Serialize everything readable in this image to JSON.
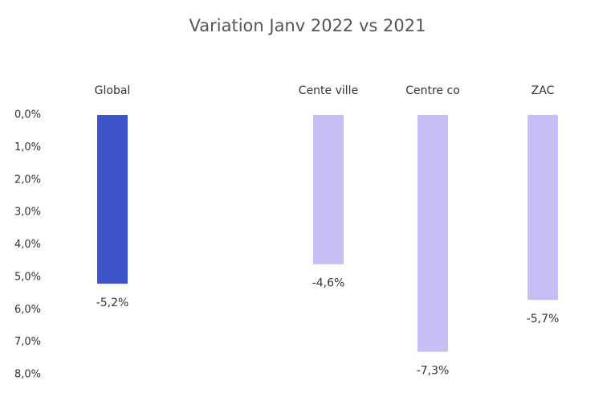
{
  "chart_data": {
    "type": "bar",
    "title": "Variation Janv 2022 vs 2021",
    "categories": [
      "Global",
      "Cente ville",
      "Centre co",
      "ZAC"
    ],
    "values": [
      -5.2,
      -4.6,
      -7.3,
      -5.7
    ],
    "value_labels": [
      "-5,2%",
      "-4,6%",
      "-7,3%",
      "-5,7%"
    ],
    "colors": [
      "#3d55c8",
      "#b8aef2",
      "#b8aef2",
      "#b8aef2"
    ],
    "ylim": [
      0,
      -8
    ],
    "yticks": [
      {
        "value": 0,
        "label": "0,0%"
      },
      {
        "value": -1,
        "label": "1,0%"
      },
      {
        "value": -2,
        "label": "2,0%"
      },
      {
        "value": -3,
        "label": "3,0%"
      },
      {
        "value": -4,
        "label": "4,0%"
      },
      {
        "value": -5,
        "label": "5,0%"
      },
      {
        "value": -6,
        "label": "6,0%"
      },
      {
        "value": -7,
        "label": "7,0%"
      },
      {
        "value": -8,
        "label": "8,0%"
      }
    ]
  }
}
